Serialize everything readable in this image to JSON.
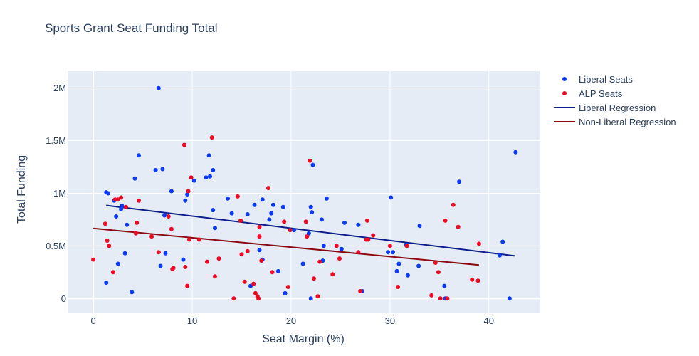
{
  "chart_data": {
    "type": "scatter",
    "title": "Sports Grant Seat Funding Total",
    "xlabel": "Seat Margin (%)",
    "ylabel": "Total Funding",
    "xlim": [
      -2.6,
      45.2
    ],
    "ylim": [
      -140000,
      2160000
    ],
    "x_ticks": [
      0,
      10,
      20,
      30,
      40
    ],
    "x_tick_labels": [
      "0",
      "10",
      "20",
      "30",
      "40"
    ],
    "y_ticks": [
      0,
      500000,
      1000000,
      1500000,
      2000000
    ],
    "y_tick_labels": [
      "0",
      "0.5M",
      "1M",
      "1.5M",
      "2M"
    ],
    "grid": true,
    "legend_position": "top-right",
    "series": [
      {
        "name": "Liberal Seats",
        "kind": "markers",
        "color": "#0b3bf5",
        "points": [
          [
            1.3,
            1010000
          ],
          [
            1.5,
            1000000
          ],
          [
            1.3,
            150000
          ],
          [
            2.1,
            930000
          ],
          [
            2.3,
            780000
          ],
          [
            2.5,
            330000
          ],
          [
            2.8,
            850000
          ],
          [
            2.9,
            880000
          ],
          [
            3.2,
            430000
          ],
          [
            3.4,
            700000
          ],
          [
            3.9,
            60000
          ],
          [
            4.2,
            1140000
          ],
          [
            4.6,
            1360000
          ],
          [
            6.3,
            1220000
          ],
          [
            6.6,
            2000000
          ],
          [
            6.8,
            310000
          ],
          [
            7.0,
            1230000
          ],
          [
            7.2,
            790000
          ],
          [
            7.3,
            430000
          ],
          [
            7.9,
            1020000
          ],
          [
            9.1,
            370000
          ],
          [
            9.3,
            930000
          ],
          [
            9.5,
            990000
          ],
          [
            10.2,
            1120000
          ],
          [
            11.4,
            1150000
          ],
          [
            11.7,
            1360000
          ],
          [
            11.8,
            1160000
          ],
          [
            12.1,
            1220000
          ],
          [
            12.1,
            840000
          ],
          [
            12.3,
            670000
          ],
          [
            13.6,
            950000
          ],
          [
            14.0,
            810000
          ],
          [
            15.6,
            800000
          ],
          [
            15.9,
            120000
          ],
          [
            16.3,
            890000
          ],
          [
            16.8,
            460000
          ],
          [
            17.1,
            940000
          ],
          [
            17.1,
            370000
          ],
          [
            17.8,
            750000
          ],
          [
            18.0,
            810000
          ],
          [
            18.2,
            890000
          ],
          [
            18.7,
            260000
          ],
          [
            19.2,
            870000
          ],
          [
            19.4,
            50000
          ],
          [
            20.3,
            650000
          ],
          [
            21.2,
            330000
          ],
          [
            21.8,
            620000
          ],
          [
            22.0,
            870000
          ],
          [
            22.0,
            0
          ],
          [
            22.1,
            820000
          ],
          [
            22.2,
            1270000
          ],
          [
            23.1,
            750000
          ],
          [
            23.3,
            500000
          ],
          [
            23.6,
            950000
          ],
          [
            23.2,
            360000
          ],
          [
            25.1,
            470000
          ],
          [
            25.4,
            720000
          ],
          [
            26.8,
            700000
          ],
          [
            27.2,
            70000
          ],
          [
            29.8,
            440000
          ],
          [
            30.1,
            960000
          ],
          [
            30.3,
            440000
          ],
          [
            30.7,
            260000
          ],
          [
            30.9,
            330000
          ],
          [
            31.6,
            510000
          ],
          [
            31.8,
            220000
          ],
          [
            32.9,
            310000
          ],
          [
            33.0,
            690000
          ],
          [
            35.5,
            120000
          ],
          [
            35.6,
            0
          ],
          [
            37.0,
            1110000
          ],
          [
            41.1,
            410000
          ],
          [
            41.4,
            540000
          ],
          [
            42.1,
            0
          ],
          [
            42.7,
            1390000
          ]
        ]
      },
      {
        "name": "ALP Seats",
        "kind": "markers",
        "color": "#ef0a24",
        "points": [
          [
            0.0,
            370000
          ],
          [
            1.2,
            710000
          ],
          [
            1.4,
            550000
          ],
          [
            1.6,
            500000
          ],
          [
            2.0,
            250000
          ],
          [
            2.2,
            940000
          ],
          [
            2.5,
            940000
          ],
          [
            2.8,
            960000
          ],
          [
            3.3,
            870000
          ],
          [
            4.3,
            620000
          ],
          [
            4.4,
            720000
          ],
          [
            4.6,
            930000
          ],
          [
            5.9,
            590000
          ],
          [
            6.6,
            440000
          ],
          [
            7.6,
            780000
          ],
          [
            7.9,
            660000
          ],
          [
            8.0,
            280000
          ],
          [
            8.1,
            290000
          ],
          [
            9.2,
            1460000
          ],
          [
            9.3,
            300000
          ],
          [
            9.5,
            120000
          ],
          [
            9.6,
            1020000
          ],
          [
            9.7,
            560000
          ],
          [
            9.9,
            1150000
          ],
          [
            10.7,
            560000
          ],
          [
            11.5,
            350000
          ],
          [
            12.0,
            1530000
          ],
          [
            12.3,
            210000
          ],
          [
            12.7,
            380000
          ],
          [
            14.2,
            0
          ],
          [
            14.6,
            970000
          ],
          [
            14.9,
            740000
          ],
          [
            15.0,
            420000
          ],
          [
            15.3,
            160000
          ],
          [
            15.6,
            450000
          ],
          [
            16.2,
            140000
          ],
          [
            16.4,
            50000
          ],
          [
            16.6,
            20000
          ],
          [
            16.7,
            0
          ],
          [
            16.8,
            680000
          ],
          [
            16.8,
            590000
          ],
          [
            17.0,
            360000
          ],
          [
            17.7,
            1050000
          ],
          [
            18.1,
            250000
          ],
          [
            19.3,
            730000
          ],
          [
            19.7,
            110000
          ],
          [
            19.9,
            650000
          ],
          [
            21.5,
            730000
          ],
          [
            21.6,
            590000
          ],
          [
            21.9,
            1310000
          ],
          [
            22.3,
            190000
          ],
          [
            22.7,
            20000
          ],
          [
            22.9,
            350000
          ],
          [
            24.2,
            230000
          ],
          [
            24.6,
            500000
          ],
          [
            24.9,
            380000
          ],
          [
            26.8,
            440000
          ],
          [
            27.0,
            70000
          ],
          [
            27.6,
            560000
          ],
          [
            27.7,
            740000
          ],
          [
            27.8,
            560000
          ],
          [
            28.3,
            600000
          ],
          [
            30.0,
            500000
          ],
          [
            30.8,
            110000
          ],
          [
            31.7,
            500000
          ],
          [
            34.2,
            30000
          ],
          [
            34.6,
            340000
          ],
          [
            34.9,
            250000
          ],
          [
            35.1,
            0
          ],
          [
            35.6,
            740000
          ],
          [
            35.8,
            0
          ],
          [
            36.4,
            890000
          ],
          [
            36.9,
            680000
          ],
          [
            38.3,
            180000
          ],
          [
            38.9,
            170000
          ],
          [
            39.0,
            520000
          ]
        ]
      },
      {
        "name": "Liberal Regression",
        "kind": "line",
        "color": "#0c1d8c",
        "points": [
          [
            1.3,
            885000
          ],
          [
            42.6,
            405000
          ]
        ]
      },
      {
        "name": "Non-Liberal Regression",
        "kind": "line",
        "color": "#8b0a12",
        "points": [
          [
            0.0,
            667000
          ],
          [
            39.0,
            318000
          ]
        ]
      }
    ]
  },
  "colors": {
    "plot_background": "#e5ecf6",
    "grid": "#ffffff",
    "text": "#2a3f5f"
  }
}
